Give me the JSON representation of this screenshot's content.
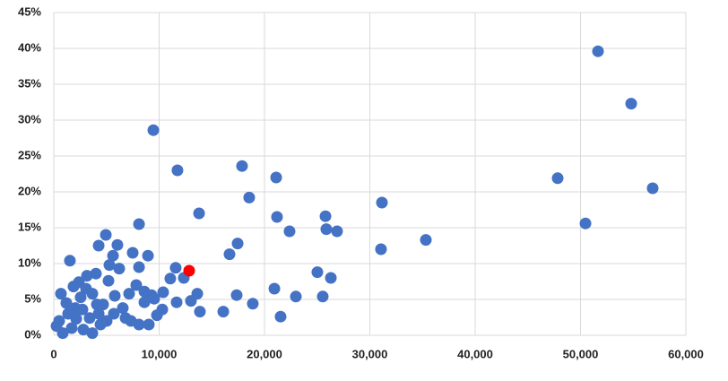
{
  "chart_data": {
    "type": "scatter",
    "xlim": [
      0,
      60000
    ],
    "ylim": [
      0,
      45
    ],
    "xticks": [
      0,
      {
        "value": 10000,
        "label": "10,000"
      },
      {
        "value": 20000,
        "label": "20,000"
      },
      {
        "value": 30000,
        "label": "30,000"
      },
      {
        "value": 40000,
        "label": "40,000"
      },
      {
        "value": 50000,
        "label": "50,000"
      },
      {
        "value": 60000,
        "label": "60,000"
      }
    ],
    "yticks": [
      {
        "value": 0,
        "label": "0%"
      },
      {
        "value": 5,
        "label": "5%"
      },
      {
        "value": 10,
        "label": "10%"
      },
      {
        "value": 15,
        "label": "15%"
      },
      {
        "value": 20,
        "label": "20%"
      },
      {
        "value": 25,
        "label": "25%"
      },
      {
        "value": 30,
        "label": "30%"
      },
      {
        "value": 35,
        "label": "35%"
      },
      {
        "value": 40,
        "label": "40%"
      },
      {
        "value": 45,
        "label": "45%"
      }
    ],
    "grid": true,
    "series": [
      {
        "color": "#4472c4",
        "x": [
          51660,
          54810,
          56850,
          47830,
          50470,
          35320,
          31150,
          31060,
          9450,
          11740,
          17870,
          21110,
          18550,
          13790,
          21190,
          25790,
          25870,
          26890,
          22380,
          17450,
          16680,
          25020,
          26300,
          20940,
          22980,
          25530,
          17360,
          18890,
          21530,
          16090,
          13870,
          13620,
          13020,
          11660,
          11570,
          12340,
          11060,
          10380,
          10300,
          9790,
          9020,
          8090,
          7490,
          8940,
          8090,
          4940,
          6040,
          5620,
          5280,
          4260,
          1530,
          7830,
          8600,
          9280,
          7150,
          6210,
          5190,
          4000,
          3150,
          2380,
          1870,
          680,
          1190,
          2550,
          3660,
          4680,
          5790,
          6550,
          5700,
          7320,
          8090,
          5020,
          4260,
          3400,
          2720,
          2130,
          1360,
          510,
          260,
          850,
          1700,
          2810,
          3660,
          4430,
          4090,
          2040,
          3060,
          6810,
          8600,
          9530
        ],
        "values": [
          39.6,
          32.3,
          20.5,
          21.9,
          15.6,
          13.3,
          18.5,
          12.0,
          28.6,
          23.0,
          23.6,
          22.0,
          19.2,
          17.0,
          16.5,
          16.6,
          14.8,
          14.5,
          14.5,
          12.8,
          11.3,
          8.8,
          8.0,
          6.5,
          5.4,
          5.4,
          5.6,
          4.4,
          2.6,
          3.3,
          3.3,
          5.8,
          4.8,
          4.6,
          9.4,
          8.0,
          7.9,
          6.0,
          3.6,
          2.8,
          1.5,
          15.5,
          11.5,
          11.1,
          9.5,
          14.0,
          12.6,
          11.1,
          9.8,
          12.5,
          10.4,
          7.0,
          6.1,
          5.6,
          5.8,
          9.3,
          7.6,
          8.6,
          8.3,
          7.4,
          6.8,
          5.8,
          4.5,
          5.3,
          5.8,
          4.3,
          5.5,
          3.8,
          3.0,
          2.0,
          1.5,
          2.0,
          3.0,
          2.4,
          3.6,
          2.3,
          3.0,
          2.0,
          1.3,
          0.3,
          1.0,
          0.8,
          0.3,
          1.5,
          4.3,
          3.8,
          6.5,
          2.4,
          4.6,
          5.1
        ]
      },
      {
        "color": "#ff0000",
        "x": [
          12850
        ],
        "values": [
          9.0
        ]
      }
    ]
  }
}
